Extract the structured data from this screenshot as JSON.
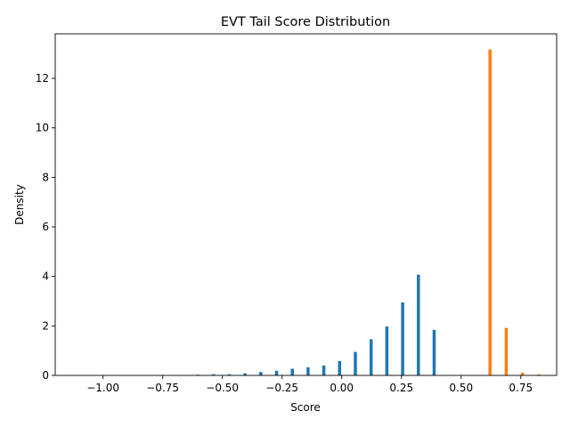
{
  "chart_data": {
    "type": "bar",
    "title": "EVT Tail Score Distribution",
    "xlabel": "Score",
    "ylabel": "Density",
    "xlim": [
      -1.2,
      0.9
    ],
    "ylim": [
      0,
      13.8
    ],
    "x_ticks": [
      -1.0,
      -0.75,
      -0.5,
      -0.25,
      0.0,
      0.25,
      0.5,
      0.75
    ],
    "x_tick_labels": [
      "−1.00",
      "−0.75",
      "−0.50",
      "−0.25",
      "0.00",
      "0.25",
      "0.50",
      "0.75"
    ],
    "y_ticks": [
      0,
      2,
      4,
      6,
      8,
      10,
      12
    ],
    "y_tick_labels": [
      "0",
      "2",
      "4",
      "6",
      "8",
      "10",
      "12"
    ],
    "bar_width": 0.013,
    "grid": false,
    "legend": "none",
    "series": [
      {
        "color": "#1f77b4",
        "x": [
          -1.131,
          -1.065,
          -0.999,
          -0.933,
          -0.867,
          -0.801,
          -0.735,
          -0.669,
          -0.603,
          -0.537,
          -0.471,
          -0.405,
          -0.339,
          -0.273,
          -0.207,
          -0.141,
          -0.075,
          -0.009,
          0.057,
          0.123,
          0.189,
          0.255,
          0.321,
          0.387
        ],
        "values": [
          0.0,
          0.0,
          0.0,
          0.0,
          0.0,
          0.0,
          0.0,
          0.0,
          0.03,
          0.05,
          0.05,
          0.08,
          0.14,
          0.19,
          0.27,
          0.33,
          0.4,
          0.58,
          0.95,
          1.46,
          1.98,
          2.95,
          4.07,
          1.84
        ]
      },
      {
        "color": "#ff7f0e",
        "x": [
          0.485,
          0.553,
          0.621,
          0.689,
          0.757,
          0.825
        ],
        "values": [
          0.0,
          0.0,
          13.17,
          1.92,
          0.11,
          0.04
        ]
      }
    ]
  }
}
